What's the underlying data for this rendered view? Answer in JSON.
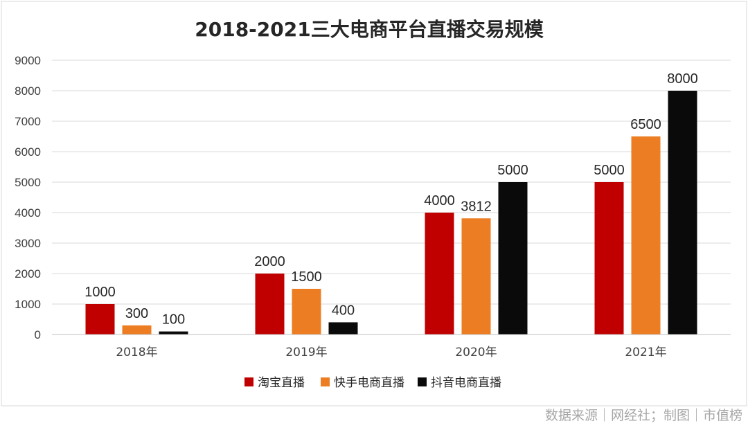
{
  "chart_data": {
    "type": "bar",
    "title": "2018-2021三大电商平台直播交易规模",
    "categories": [
      "2018年",
      "2019年",
      "2020年",
      "2021年"
    ],
    "series": [
      {
        "name": "淘宝直播",
        "color": "#c00000",
        "values": [
          1000,
          2000,
          4000,
          5000
        ]
      },
      {
        "name": "快手电商直播",
        "color": "#ed7d22",
        "values": [
          300,
          1500,
          3812,
          6500
        ]
      },
      {
        "name": "抖音电商直播",
        "color": "#0a0a0a",
        "values": [
          100,
          400,
          5000,
          8000
        ]
      }
    ],
    "ylim": [
      0,
      9000
    ],
    "yticks": [
      0,
      1000,
      2000,
      3000,
      4000,
      5000,
      6000,
      7000,
      8000,
      9000
    ],
    "grid": true,
    "legend_position": "bottom"
  },
  "source_note": "数据来源｜网经社；制图｜市值榜"
}
